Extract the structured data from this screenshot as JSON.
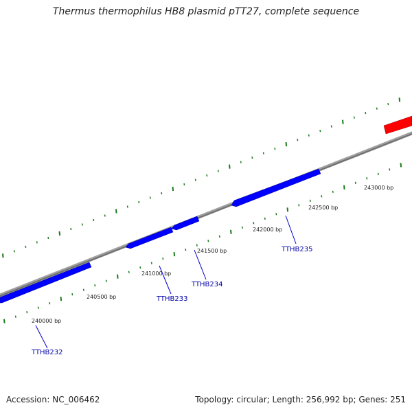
{
  "title": "Thermus thermophilus HB8 plasmid pTT27, complete sequence",
  "footer": {
    "accession": "Accession: NC_006462",
    "summary": "Topology: circular; Length: 256,992 bp; Genes: 251"
  },
  "colors": {
    "backbone": "#808080",
    "tick": "#1a7a1a",
    "gene_forward": "#ff0000",
    "gene_reverse": "#0000ff",
    "gene_label": "#0000aa",
    "leader_line": "#0000cc",
    "bp_text": "#222222"
  },
  "bp_labels": [
    "240000 bp",
    "240500 bp",
    "241000 bp",
    "241500 bp",
    "242000 bp",
    "242500 bp",
    "243000 bp"
  ],
  "gene_labels": [
    "TTHB232",
    "TTHB233",
    "TTHB234",
    "TTHB235"
  ],
  "genes": [
    {
      "strand": "reverse",
      "label": "TTHB232"
    },
    {
      "strand": "reverse",
      "label": "TTHB233"
    },
    {
      "strand": "reverse",
      "label": "TTHB234"
    },
    {
      "strand": "reverse",
      "label": "TTHB235"
    },
    {
      "strand": "forward",
      "label": ""
    }
  ]
}
